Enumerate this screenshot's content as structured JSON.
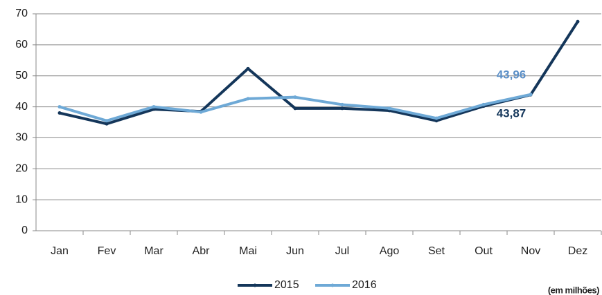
{
  "chart_data": {
    "type": "line",
    "categories": [
      "Jan",
      "Fev",
      "Mar",
      "Abr",
      "Mai",
      "Jun",
      "Jul",
      "Ago",
      "Set",
      "Out",
      "Nov",
      "Dez"
    ],
    "series": [
      {
        "name": "2015",
        "color": "#14365a",
        "values": [
          38,
          34.5,
          39.2,
          38.5,
          52.3,
          39.5,
          39.5,
          38.8,
          35.5,
          40.2,
          43.87,
          67.5
        ],
        "value_labels": [
          null,
          null,
          null,
          null,
          null,
          null,
          null,
          null,
          null,
          null,
          "43,87",
          null
        ]
      },
      {
        "name": "2016",
        "color": "#6ea9d6",
        "values": [
          40,
          35.5,
          40,
          38.3,
          42.6,
          43.1,
          40.7,
          39.5,
          36.3,
          40.7,
          43.96,
          null
        ],
        "value_labels": [
          null,
          null,
          null,
          null,
          null,
          null,
          null,
          null,
          null,
          null,
          "43,96",
          null
        ]
      }
    ],
    "label_colors": [
      "#14365a",
      "#5b8fc7"
    ],
    "ylim": [
      0,
      70
    ],
    "yticks": [
      0,
      10,
      20,
      30,
      40,
      50,
      60,
      70
    ],
    "grid": true,
    "legend": "bottom",
    "annotation": "(em milhões)"
  }
}
